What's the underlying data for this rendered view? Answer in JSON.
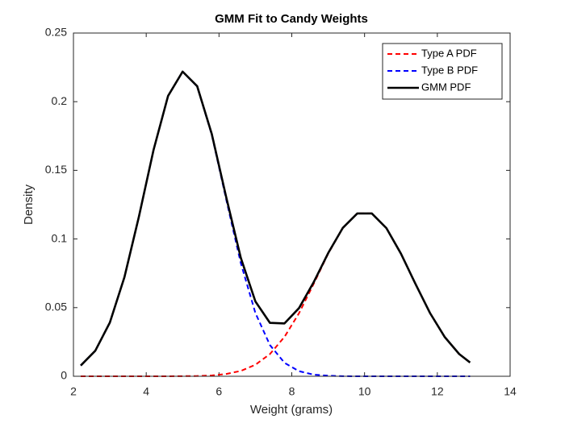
{
  "chart_data": {
    "type": "line",
    "title": "GMM Fit to Candy Weights",
    "xlabel": "Weight (grams)",
    "ylabel": "Density",
    "x": [
      2.2,
      2.6,
      3.0,
      3.4,
      3.8,
      4.2,
      4.6,
      5.0,
      5.4,
      5.8,
      6.2,
      6.6,
      7.0,
      7.4,
      7.8,
      8.2,
      8.6,
      9.0,
      9.4,
      9.8,
      10.2,
      10.6,
      11.0,
      11.4,
      11.8,
      12.2,
      12.6,
      12.9
    ],
    "series": [
      {
        "name": "Type A PDF",
        "color": "#ff0000",
        "line_style": "dashed",
        "values": [
          0,
          0,
          0,
          0,
          0,
          0,
          0,
          0.0001,
          0.0002,
          0.0006,
          0.0017,
          0.0039,
          0.0084,
          0.0162,
          0.0287,
          0.046,
          0.0672,
          0.0893,
          0.1079,
          0.1186,
          0.1186,
          0.1079,
          0.0893,
          0.0672,
          0.046,
          0.0287,
          0.0162,
          0.01
        ]
      },
      {
        "name": "Type B PDF",
        "color": "#0000ff",
        "line_style": "dashed",
        "values": [
          0.0078,
          0.0186,
          0.0391,
          0.0721,
          0.1164,
          0.1647,
          0.2042,
          0.2218,
          0.2111,
          0.176,
          0.1285,
          0.0823,
          0.0461,
          0.0227,
          0.0098,
          0.0037,
          0.0012,
          0.0004,
          0.0001,
          0,
          0,
          0,
          0,
          0,
          0,
          0,
          0,
          0
        ]
      },
      {
        "name": "GMM PDF",
        "color": "#000000",
        "line_style": "solid",
        "values": [
          0.0078,
          0.0186,
          0.0391,
          0.0721,
          0.1164,
          0.1647,
          0.2042,
          0.2219,
          0.2113,
          0.1766,
          0.1302,
          0.0862,
          0.0545,
          0.0389,
          0.0385,
          0.0497,
          0.0684,
          0.0897,
          0.108,
          0.1186,
          0.1186,
          0.1079,
          0.0893,
          0.0672,
          0.046,
          0.0287,
          0.0162,
          0.01
        ]
      }
    ],
    "xlim": [
      2,
      14
    ],
    "xticks": [
      2,
      4,
      6,
      8,
      10,
      12,
      14
    ],
    "ylim": [
      0,
      0.25
    ],
    "yticks": [
      0,
      0.05,
      0.1,
      0.15,
      0.2,
      0.25
    ],
    "grid": false,
    "legend": "northeast"
  }
}
